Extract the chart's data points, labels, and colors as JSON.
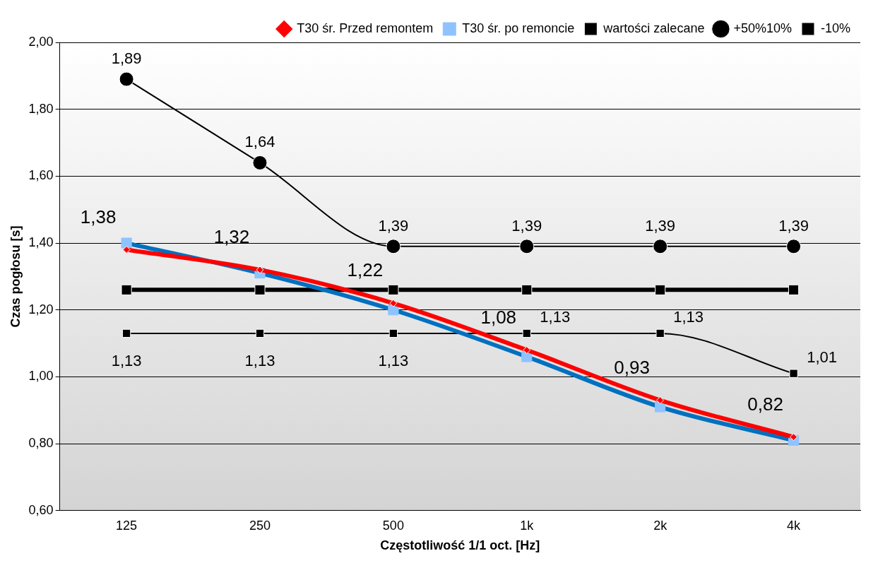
{
  "chart_data": {
    "type": "line",
    "xlabel": "Częstotliwość 1/1 oct. [Hz]",
    "ylabel": "Czas pogłosu [s]",
    "categories": [
      "125",
      "250",
      "500",
      "1k",
      "2k",
      "4k"
    ],
    "ylim": [
      0.6,
      2.0
    ],
    "yticks": [
      {
        "value": 0.6,
        "label": "0,60"
      },
      {
        "value": 0.8,
        "label": "0,80"
      },
      {
        "value": 1.0,
        "label": "1,00"
      },
      {
        "value": 1.2,
        "label": "1,20"
      },
      {
        "value": 1.4,
        "label": "1,40"
      },
      {
        "value": 1.6,
        "label": "1,60"
      },
      {
        "value": 1.8,
        "label": "1,80"
      },
      {
        "value": 2.0,
        "label": "2,00"
      }
    ],
    "grid": "y",
    "legend": "top right",
    "series": [
      {
        "name": "T30 śr. Przed remontem",
        "color": "#ff0000",
        "marker": "diamond",
        "values": [
          1.38,
          1.32,
          1.22,
          1.08,
          0.93,
          0.82
        ],
        "value_labels": [
          "1,38",
          "1,32",
          "1,22",
          "1,08",
          "0,93",
          "0,82"
        ]
      },
      {
        "name": "T30 śr. po remoncie",
        "color": "#0070c0",
        "marker": "square",
        "values": [
          1.4,
          1.31,
          1.2,
          1.06,
          0.91,
          0.81
        ]
      },
      {
        "name": "wartości zalecane",
        "color": "#000000",
        "marker": "square",
        "values": [
          1.26,
          1.26,
          1.26,
          1.26,
          1.26,
          1.26
        ]
      },
      {
        "name": "+50%10%",
        "color": "#000000",
        "marker": "circle",
        "values": [
          1.89,
          1.64,
          1.39,
          1.39,
          1.39,
          1.39
        ],
        "value_labels": [
          "1,89",
          "1,64",
          "1,39",
          "1,39",
          "1,39",
          "1,39"
        ]
      },
      {
        "name": "-10%",
        "color": "#000000",
        "marker": "square",
        "values": [
          1.13,
          1.13,
          1.13,
          1.13,
          1.13,
          1.01
        ],
        "value_labels": [
          "1,13",
          "1,13",
          "1,13",
          "1,13",
          "1,13",
          "1,01"
        ]
      }
    ]
  }
}
